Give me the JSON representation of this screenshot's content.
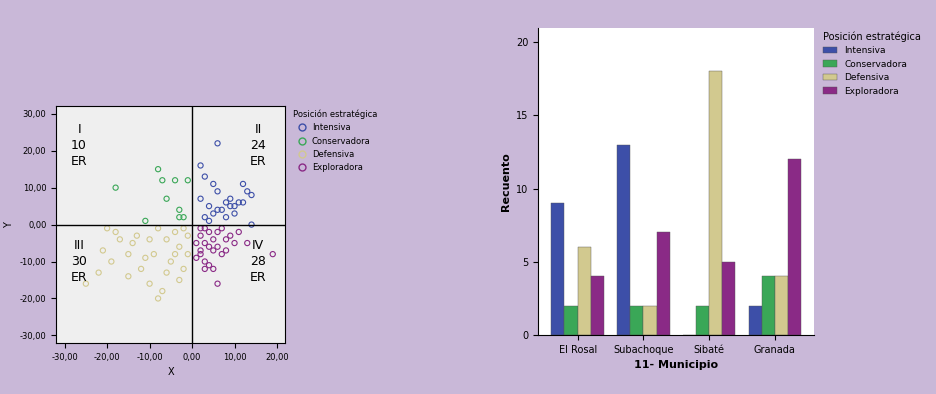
{
  "chart_data": [
    {
      "type": "scatter",
      "x_label": "X",
      "y_label": "Y",
      "legend_title": "Posición estratégica",
      "marker": "o",
      "xlim": [
        -32,
        22
      ],
      "ylim": [
        -32,
        32
      ],
      "xticks": [
        {
          "value": -30,
          "label": "-30,00"
        },
        {
          "value": -20,
          "label": "-20,00"
        },
        {
          "value": -10,
          "label": "-10,00"
        },
        {
          "value": 0,
          "label": "0,00"
        },
        {
          "value": 10,
          "label": "10,00"
        },
        {
          "value": 20,
          "label": "20,00"
        }
      ],
      "yticks": [
        {
          "value": -30,
          "label": "-30,00"
        },
        {
          "value": -20,
          "label": "-20,00"
        },
        {
          "value": -10,
          "label": "-10,00"
        },
        {
          "value": 0,
          "label": "0,00"
        },
        {
          "value": 10,
          "label": "10,00"
        },
        {
          "value": 20,
          "label": "20,00"
        },
        {
          "value": 30,
          "label": "30,00"
        }
      ],
      "annotations": [
        "I\n10\nER",
        "II\n24\nER",
        "III\n30\nER",
        "IV\n28\nER"
      ],
      "series": [
        {
          "name": "Intensiva",
          "color": "#3d4fa8",
          "x": [
            6,
            2,
            3,
            5,
            12,
            13,
            14,
            11,
            12,
            8,
            9,
            10,
            7,
            6,
            5,
            3,
            4,
            8,
            10,
            14,
            2,
            6,
            4,
            9
          ],
          "y": [
            22,
            16,
            13,
            11,
            11,
            9,
            8,
            6,
            6,
            6,
            5,
            5,
            4,
            4,
            3,
            2,
            1,
            2,
            3,
            0,
            7,
            9,
            5,
            7
          ]
        },
        {
          "name": "Conservadora",
          "color": "#3aa757",
          "x": [
            -18,
            -8,
            -7,
            -4,
            -6,
            -3,
            -2,
            -11,
            -1,
            -3
          ],
          "y": [
            10,
            15,
            12,
            12,
            7,
            4,
            2,
            1,
            12,
            2
          ]
        },
        {
          "name": "Defensiva",
          "color": "#d2c98f",
          "x": [
            -25,
            -22,
            -19,
            -15,
            -12,
            -8,
            -7,
            -10,
            -14,
            -20,
            -13,
            -9,
            -6,
            -4,
            -3,
            -5,
            -2,
            -1,
            -17,
            -11,
            -8,
            -3,
            -6,
            -4,
            -2,
            -15,
            -21,
            -10,
            -1,
            -18
          ],
          "y": [
            -16,
            -13,
            -10,
            -8,
            -12,
            -20,
            -18,
            -16,
            -5,
            -1,
            -3,
            -8,
            -4,
            -2,
            -6,
            -10,
            -12,
            -3,
            -4,
            -9,
            -1,
            -15,
            -13,
            -8,
            -1,
            -14,
            -7,
            -4,
            -8,
            -2
          ]
        },
        {
          "name": "Exploradora",
          "color": "#8a2a86",
          "x": [
            6,
            5,
            4,
            3,
            2,
            1,
            2,
            3,
            4,
            5,
            6,
            7,
            8,
            5,
            4,
            3,
            2,
            6,
            7,
            9,
            10,
            11,
            8,
            13,
            19,
            1,
            3,
            2
          ],
          "y": [
            -16,
            -12,
            -11,
            -10,
            -8,
            -5,
            -3,
            -1,
            -2,
            -4,
            -6,
            -8,
            -7,
            -7,
            -6,
            -5,
            -7,
            -2,
            -1,
            -3,
            -5,
            -2,
            -4,
            -5,
            -8,
            -9,
            -12,
            -1
          ]
        }
      ]
    },
    {
      "type": "bar",
      "x_label": "11- Municipio",
      "y_label": "Recuento",
      "legend_title": "Posición estratégica",
      "categories": [
        "El Rosal",
        "Subachoque",
        "Sibaté",
        "Granada"
      ],
      "ylim": [
        0,
        21
      ],
      "yticks": [
        0,
        5,
        10,
        15,
        20
      ],
      "series": [
        {
          "name": "Intensiva",
          "color": "#3d4fa8",
          "values": [
            9,
            13,
            0,
            2
          ]
        },
        {
          "name": "Conservadora",
          "color": "#3aa757",
          "values": [
            2,
            2,
            2,
            4
          ]
        },
        {
          "name": "Defensiva",
          "color": "#d2c98f",
          "values": [
            6,
            2,
            18,
            4
          ]
        },
        {
          "name": "Exploradora",
          "color": "#8a2a86",
          "values": [
            4,
            7,
            5,
            12
          ]
        }
      ]
    }
  ]
}
